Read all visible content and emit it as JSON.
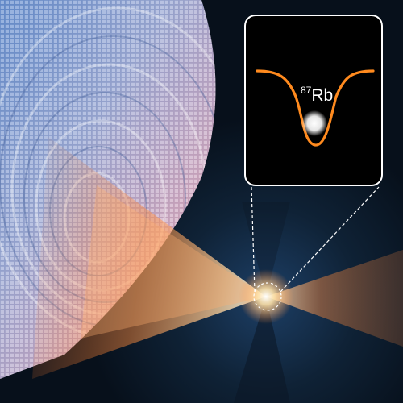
{
  "inset": {
    "isotope_mass_number": "87",
    "element_symbol": "Rb"
  },
  "colors": {
    "background": "#0a1420",
    "lattice_blue": "#7ea8e0",
    "lattice_pink": "#e6b4c8",
    "beam_orange": "#ff7a2e",
    "beam_core": "#fff6dc",
    "trap_curve": "#ff8a1e",
    "inset_border": "#ffffff"
  },
  "icons": {
    "atom": "atom-glow",
    "trap": "trap-potential-curve"
  }
}
